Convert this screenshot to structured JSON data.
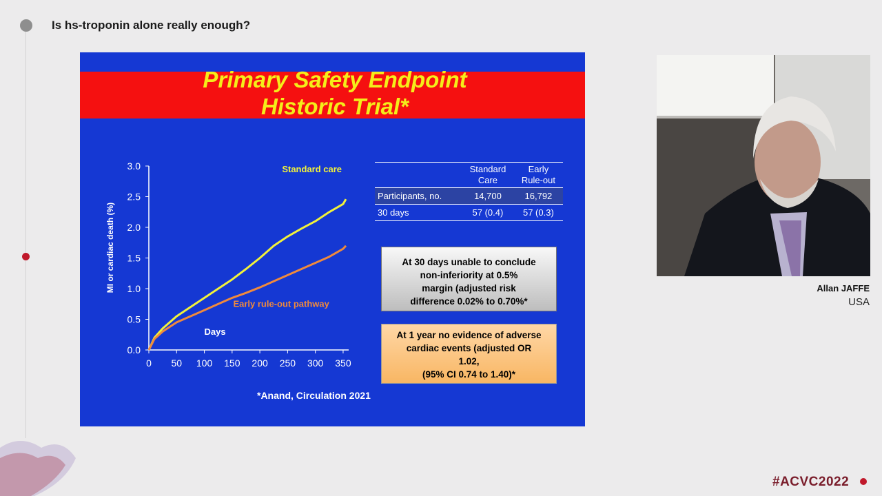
{
  "header": {
    "title": "Is hs-troponin alone really enough?"
  },
  "slide": {
    "title_line1": "Primary Safety Endpoint",
    "title_line2": "Historic Trial*",
    "citation": "*Anand, Circulation 2021",
    "table": {
      "col1_line1": "Standard",
      "col1_line2": "Care",
      "col2_line1": "Early",
      "col2_line2": "Rule-out",
      "rows": [
        {
          "label": "Participants, no.",
          "standard": "14,700",
          "early": "16,792"
        },
        {
          "label": "30 days",
          "standard": "57 (0.4)",
          "early": "57 (0.3)"
        }
      ]
    },
    "box_30days": {
      "line1": "At 30 days unable to conclude",
      "line2": "non-inferiority at 0.5%",
      "line3": "margin (adjusted risk",
      "line4": "difference 0.02% to 0.70%*"
    },
    "box_1year": {
      "line1": "At 1 year no evidence of adverse",
      "line2": "cardiac events (adjusted OR",
      "line3": "1.02,",
      "line4": "(95% CI 0.74 to 1.40)*"
    }
  },
  "chart_data": {
    "type": "line",
    "xlabel": "Days",
    "ylabel": "MI or cardiac death (%)",
    "xlim": [
      0,
      360
    ],
    "ylim": [
      0,
      3.0
    ],
    "x_ticks": [
      0,
      50,
      100,
      150,
      200,
      250,
      300,
      350
    ],
    "y_ticks": [
      "0.0",
      "0.5",
      "1.0",
      "1.5",
      "2.0",
      "2.5",
      "3.0"
    ],
    "grid": false,
    "series": [
      {
        "name": "Standard care",
        "color": "#f2f23a",
        "x": [
          0,
          10,
          25,
          50,
          75,
          100,
          125,
          150,
          175,
          200,
          225,
          250,
          275,
          300,
          325,
          350,
          355
        ],
        "y": [
          0,
          0.2,
          0.35,
          0.55,
          0.7,
          0.85,
          1.0,
          1.15,
          1.32,
          1.5,
          1.7,
          1.85,
          1.98,
          2.1,
          2.25,
          2.38,
          2.46
        ]
      },
      {
        "name": "Early rule-out pathway",
        "color": "#f08a3c",
        "x": [
          0,
          10,
          25,
          50,
          75,
          100,
          125,
          150,
          175,
          200,
          225,
          250,
          275,
          300,
          325,
          350,
          355
        ],
        "y": [
          0,
          0.18,
          0.3,
          0.45,
          0.55,
          0.65,
          0.75,
          0.85,
          0.93,
          1.02,
          1.12,
          1.22,
          1.32,
          1.42,
          1.52,
          1.65,
          1.7
        ]
      }
    ]
  },
  "speaker": {
    "name": "Allan JAFFE",
    "country": "USA"
  },
  "footer": {
    "hashtag": "#ACVC2022"
  }
}
